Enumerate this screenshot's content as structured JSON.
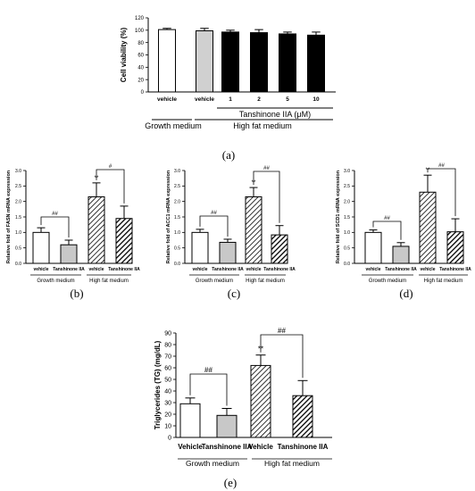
{
  "chart_data": [
    {
      "panel": "(a)",
      "type": "bar",
      "ylabel": "Cell viability (%)",
      "ylim": [
        0,
        120
      ],
      "yticks": [
        0,
        20,
        40,
        60,
        80,
        100,
        120
      ],
      "categories": [
        "vehicle",
        "vehicle",
        "1",
        "2",
        "5",
        "10"
      ],
      "values": [
        101,
        99,
        97,
        96,
        94,
        92
      ],
      "errors": [
        2,
        4,
        3,
        5,
        3,
        5
      ],
      "bar_colors": [
        "#ffffff",
        "#d0d0d0",
        "#000000",
        "#000000",
        "#000000",
        "#000000"
      ],
      "group_labels": {
        "tanshinone": "Tanshinone IIA (μM)",
        "growth": "Growth medium",
        "high_fat": "High fat medium"
      }
    },
    {
      "panel": "(b)",
      "type": "bar",
      "ylabel": "Relative fold of FASN mRNA expression",
      "ylim": [
        0,
        3.0
      ],
      "yticks": [
        "0.0",
        "0.5",
        "1.0",
        "1.5",
        "2.0",
        "2.5",
        "3.0"
      ],
      "categories": [
        "vehicle",
        "Tanshinone IIA",
        "vehicle",
        "Tanshinone IIA"
      ],
      "values": [
        1.0,
        0.6,
        2.15,
        1.45
      ],
      "errors": [
        0.15,
        0.15,
        0.45,
        0.4
      ],
      "groups": [
        "Growth medium",
        "High fat medium"
      ],
      "annotations": {
        "stars": "**",
        "hash_growth": "##",
        "hash_highfat": "#"
      }
    },
    {
      "panel": "(c)",
      "type": "bar",
      "ylabel": "Relative fold of ACC1 mRNA expression",
      "ylim": [
        0,
        3.0
      ],
      "yticks": [
        "0.0",
        "0.5",
        "1.0",
        "1.5",
        "2.0",
        "2.5",
        "3.0"
      ],
      "categories": [
        "vehicle",
        "Tanshinone IIA",
        "vehicle",
        "Tanshinone IIA"
      ],
      "values": [
        1.0,
        0.68,
        2.15,
        0.92
      ],
      "errors": [
        0.1,
        0.1,
        0.3,
        0.3
      ],
      "groups": [
        "Growth medium",
        "High fat medium"
      ],
      "annotations": {
        "stars": "**",
        "hash_growth": "##",
        "hash_highfat": "##"
      }
    },
    {
      "panel": "(d)",
      "type": "bar",
      "ylabel": "Relative fold of SCD1 mRNA expression",
      "ylim": [
        0,
        3.0
      ],
      "yticks": [
        "0.0",
        "0.5",
        "1.0",
        "1.5",
        "2.0",
        "2.5",
        "3.0"
      ],
      "categories": [
        "vehicle",
        "Tanshinone IIA",
        "vehicle",
        "Tanshinone IIA"
      ],
      "values": [
        1.0,
        0.55,
        2.3,
        1.02
      ],
      "errors": [
        0.08,
        0.12,
        0.55,
        0.42
      ],
      "groups": [
        "Growth medium",
        "High fat medium"
      ],
      "annotations": {
        "stars": "**",
        "hash_growth": "##",
        "hash_highfat": "##"
      }
    },
    {
      "panel": "(e)",
      "type": "bar",
      "ylabel": "Triglycerides (TG) (mg/dL)",
      "ylim": [
        0,
        90
      ],
      "yticks": [
        "0",
        "10",
        "20",
        "30",
        "40",
        "50",
        "60",
        "70",
        "80",
        "90"
      ],
      "categories": [
        "Vehicle",
        "Tanshinone IIA",
        "Vehicle",
        "Tanshinone IIA"
      ],
      "values": [
        29,
        19,
        62,
        36
      ],
      "errors": [
        5,
        6,
        9,
        13
      ],
      "groups": [
        "Growth medium",
        "High fat medium"
      ],
      "annotations": {
        "stars": "**",
        "hash_growth": "##",
        "hash_highfat": "##"
      }
    }
  ]
}
